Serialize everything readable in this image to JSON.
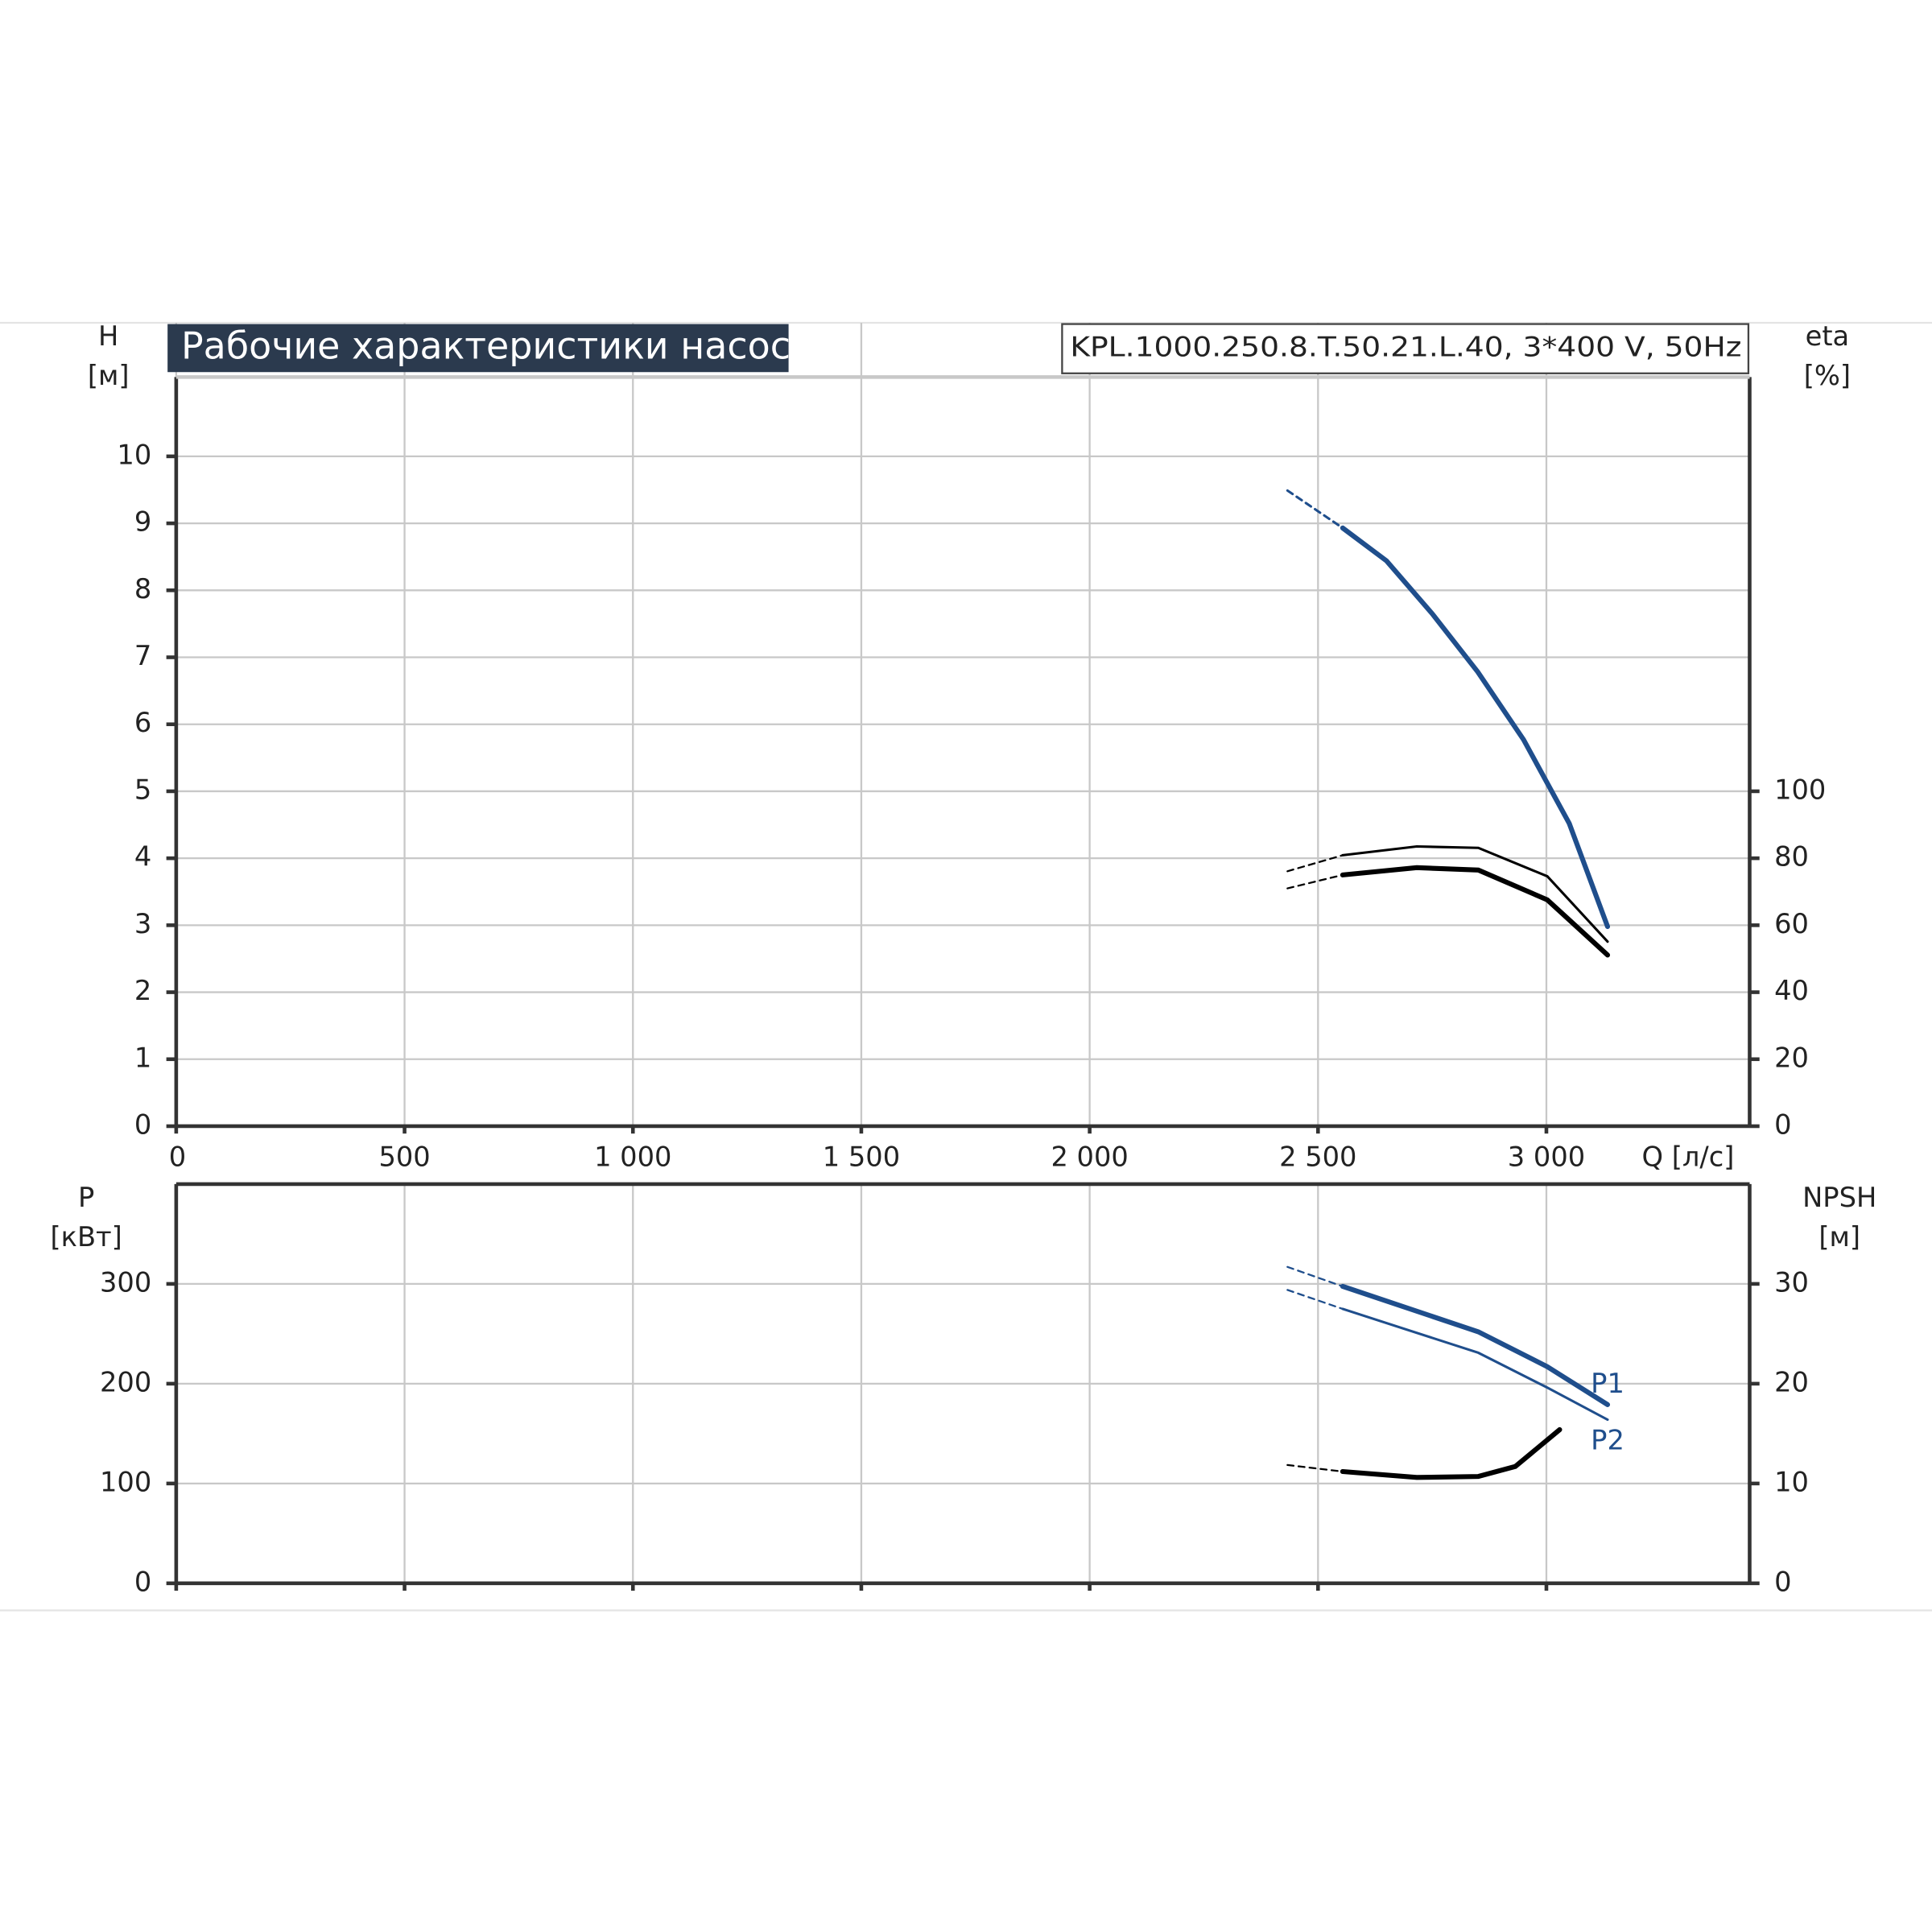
{
  "chart_data": [
    {
      "type": "line",
      "title": "Рабочие характеристики насоса",
      "subtitle": "KPL.1000.250.8.T.50.21.L.40, 3*400 V, 50Hz",
      "xlabel": "Q [л/с]",
      "ylabel": [
        "H",
        "[м]"
      ],
      "y2label": [
        "eta",
        "[%]"
      ],
      "xlim": [
        0,
        3445
      ],
      "xticks": [
        0,
        500,
        {
          "value": 1000,
          "label": "1 000"
        },
        {
          "value": 1500,
          "label": "1 500"
        },
        {
          "value": 2000,
          "label": "2 000"
        },
        {
          "value": 2500,
          "label": "2 500"
        },
        {
          "value": 3000,
          "label": "3 000"
        }
      ],
      "show_xtick_labels": true,
      "ylim": [
        0,
        11
      ],
      "yticks": [
        0,
        1,
        2,
        3,
        4,
        5,
        6,
        7,
        8,
        9,
        10
      ],
      "y2lim": [
        0,
        220
      ],
      "y2ticks": [
        0,
        20,
        40,
        60,
        80,
        100
      ],
      "grid": true,
      "series": [
        {
          "color": "#1f4e8c",
          "width": 2,
          "dashed": true,
          "axis": "y",
          "x": [
            2433,
            2554
          ],
          "values": [
            9.49,
            8.93
          ]
        },
        {
          "color": "#1f4e8c",
          "width": 4,
          "dashed": false,
          "axis": "y",
          "x": [
            2554,
            2650,
            2750,
            2850,
            2950,
            3050,
            3134
          ],
          "values": [
            8.93,
            8.44,
            7.65,
            6.78,
            5.77,
            4.52,
            2.98
          ]
        },
        {
          "color": "#000000",
          "width": 1.5,
          "dashed": true,
          "axis": "y2",
          "x": [
            2433,
            2554
          ],
          "values": [
            76.1,
            80.9
          ]
        },
        {
          "color": "#000000",
          "width": 2,
          "dashed": false,
          "axis": "y2",
          "x": [
            2554,
            2716,
            2851,
            3002,
            3134
          ],
          "values": [
            80.9,
            83.5,
            83.1,
            74.6,
            55.1
          ]
        },
        {
          "color": "#000000",
          "width": 1.5,
          "dashed": true,
          "axis": "y2",
          "x": [
            2433,
            2554
          ],
          "values": [
            71.0,
            75.0
          ]
        },
        {
          "color": "#000000",
          "width": 4,
          "dashed": false,
          "axis": "y2",
          "x": [
            2554,
            2716,
            2851,
            3002,
            3134
          ],
          "values": [
            75.0,
            77.2,
            76.5,
            67.6,
            51.1
          ]
        }
      ]
    },
    {
      "type": "line",
      "ylabel": [
        "P",
        "[кВт]"
      ],
      "y2label": [
        "NPSH",
        "[м]"
      ],
      "xlim": [
        0,
        3445
      ],
      "xticks": [
        0,
        500,
        1000,
        1500,
        2000,
        2500,
        3000
      ],
      "show_xtick_labels": false,
      "ylim": [
        0,
        400
      ],
      "yticks": [
        0,
        100,
        200,
        300
      ],
      "y2lim": [
        0,
        40
      ],
      "y2ticks": [
        0,
        10,
        20,
        30
      ],
      "grid": true,
      "series": [
        {
          "color": "#1f4e8c",
          "width": 1.5,
          "dashed": true,
          "axis": "y",
          "x": [
            2433,
            2554
          ],
          "values": [
            317,
            297.5
          ]
        },
        {
          "name": "P1",
          "color": "#1f4e8c",
          "width": 4,
          "dashed": false,
          "axis": "y",
          "x": [
            2554,
            2851,
            3002,
            3134
          ],
          "values": [
            297.5,
            252,
            217,
            179
          ]
        },
        {
          "color": "#1f4e8c",
          "width": 1.5,
          "dashed": true,
          "axis": "y",
          "x": [
            2433,
            2554
          ],
          "values": [
            294,
            275
          ]
        },
        {
          "name": "P2",
          "color": "#1f4e8c",
          "width": 2,
          "dashed": false,
          "axis": "y",
          "x": [
            2554,
            2851,
            3002,
            3134
          ],
          "values": [
            275,
            231,
            196,
            164
          ]
        },
        {
          "color": "#000000",
          "width": 1.5,
          "dashed": true,
          "axis": "y2",
          "x": [
            2433,
            2554
          ],
          "values": [
            11.85,
            11.2
          ]
        },
        {
          "color": "#000000",
          "width": 4,
          "dashed": false,
          "axis": "y2",
          "x": [
            2554,
            2716,
            2851,
            2932,
            3029
          ],
          "values": [
            11.2,
            10.6,
            10.7,
            11.7,
            15.4
          ]
        }
      ]
    }
  ]
}
